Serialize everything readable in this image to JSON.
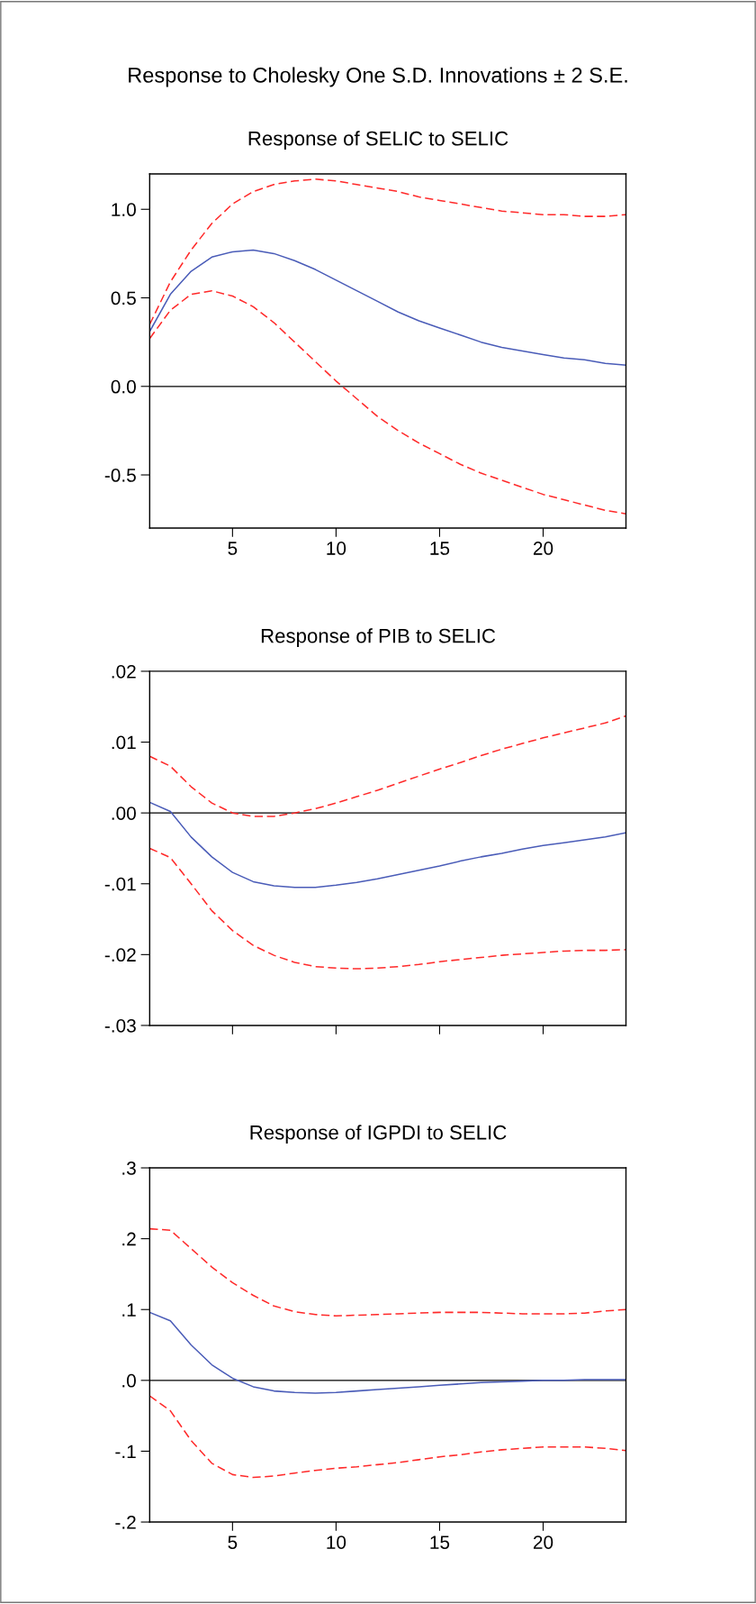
{
  "chart_data": [
    {
      "type": "line",
      "title": "Response to Cholesky One S.D. Innovations ± 2 S.E.",
      "subtitle": "Response of SELIC to SELIC",
      "x": [
        1,
        2,
        3,
        4,
        5,
        6,
        7,
        8,
        9,
        10,
        11,
        12,
        13,
        14,
        15,
        16,
        17,
        18,
        19,
        20,
        21,
        22,
        23,
        24
      ],
      "xlim": [
        1,
        24
      ],
      "xticks": [
        5,
        10,
        15,
        20
      ],
      "ylim": [
        -0.8,
        1.2
      ],
      "yticks": [
        {
          "value": -0.5,
          "label": "-0.5"
        },
        {
          "value": 0,
          "label": "0.0"
        },
        {
          "value": 0.5,
          "label": "0.5"
        },
        {
          "value": 1.0,
          "label": "1.0"
        }
      ],
      "grid": false,
      "legend": false,
      "ref_lines": [
        {
          "axis": "y",
          "value": 0,
          "color": "#000000",
          "line_style": "solid"
        }
      ],
      "series": [
        {
          "color": "#4a5cb8",
          "line_style": "solid",
          "values": [
            0.31,
            0.52,
            0.65,
            0.73,
            0.76,
            0.77,
            0.75,
            0.71,
            0.66,
            0.6,
            0.54,
            0.48,
            0.42,
            0.37,
            0.33,
            0.29,
            0.25,
            0.22,
            0.2,
            0.18,
            0.16,
            0.15,
            0.13,
            0.12
          ]
        },
        {
          "color": "#ff2a2a",
          "line_style": "dashed",
          "values": [
            0.35,
            0.59,
            0.77,
            0.92,
            1.03,
            1.1,
            1.14,
            1.16,
            1.17,
            1.16,
            1.14,
            1.12,
            1.1,
            1.07,
            1.05,
            1.03,
            1.01,
            0.99,
            0.98,
            0.97,
            0.97,
            0.96,
            0.96,
            0.97
          ]
        },
        {
          "color": "#ff2a2a",
          "line_style": "dashed",
          "values": [
            0.27,
            0.43,
            0.52,
            0.54,
            0.51,
            0.45,
            0.36,
            0.25,
            0.14,
            0.03,
            -0.07,
            -0.17,
            -0.25,
            -0.32,
            -0.38,
            -0.44,
            -0.49,
            -0.53,
            -0.57,
            -0.61,
            -0.64,
            -0.67,
            -0.7,
            -0.72
          ]
        }
      ]
    },
    {
      "type": "line",
      "title": "Response of PIB to SELIC",
      "x": [
        1,
        2,
        3,
        4,
        5,
        6,
        7,
        8,
        9,
        10,
        11,
        12,
        13,
        14,
        15,
        16,
        17,
        18,
        19,
        20,
        21,
        22,
        23,
        24
      ],
      "xlim": [
        1,
        24
      ],
      "xticks": [
        {
          "value": 5,
          "label": null
        },
        {
          "value": 10,
          "label": null
        },
        {
          "value": 15,
          "label": null
        },
        {
          "value": 20,
          "label": null
        }
      ],
      "ylim": [
        -0.03,
        0.02
      ],
      "yticks": [
        {
          "value": -0.03,
          "label": "-.03"
        },
        {
          "value": -0.02,
          "label": "-.02"
        },
        {
          "value": -0.01,
          "label": "-.01"
        },
        {
          "value": 0,
          "label": ".00"
        },
        {
          "value": 0.01,
          "label": ".01"
        },
        {
          "value": 0.02,
          "label": ".02"
        }
      ],
      "tick_labels": "y",
      "grid": false,
      "legend": false,
      "ref_lines": [
        {
          "axis": "y",
          "value": 0,
          "color": "#000000",
          "line_style": "solid"
        }
      ],
      "series": [
        {
          "color": "#4a5cb8",
          "line_style": "solid",
          "values": [
            0.0015,
            0.0002,
            -0.0034,
            -0.0062,
            -0.0084,
            -0.0097,
            -0.0103,
            -0.0105,
            -0.0105,
            -0.0102,
            -0.0098,
            -0.0093,
            -0.0087,
            -0.0081,
            -0.0075,
            -0.0068,
            -0.0062,
            -0.0057,
            -0.0051,
            -0.0046,
            -0.0042,
            -0.0038,
            -0.0034,
            -0.0028
          ]
        },
        {
          "color": "#ff2a2a",
          "line_style": "dashed",
          "values": [
            0.008,
            0.0066,
            0.0037,
            0.0014,
            0.0,
            -0.0005,
            -0.0005,
            0.0,
            0.0006,
            0.0014,
            0.0023,
            0.0032,
            0.0042,
            0.0052,
            0.0062,
            0.0071,
            0.0081,
            0.009,
            0.0098,
            0.0106,
            0.0113,
            0.012,
            0.0127,
            0.0137
          ]
        },
        {
          "color": "#ff2a2a",
          "line_style": "dashed",
          "values": [
            -0.005,
            -0.0063,
            -0.01,
            -0.0138,
            -0.0166,
            -0.0187,
            -0.0201,
            -0.0211,
            -0.0217,
            -0.0219,
            -0.022,
            -0.0219,
            -0.0217,
            -0.0214,
            -0.021,
            -0.0207,
            -0.0204,
            -0.0201,
            -0.0199,
            -0.0197,
            -0.0195,
            -0.0194,
            -0.0194,
            -0.0193
          ]
        }
      ]
    },
    {
      "type": "line",
      "title": "Response of IGPDI to SELIC",
      "x": [
        1,
        2,
        3,
        4,
        5,
        6,
        7,
        8,
        9,
        10,
        11,
        12,
        13,
        14,
        15,
        16,
        17,
        18,
        19,
        20,
        21,
        22,
        23,
        24
      ],
      "xlim": [
        1,
        24
      ],
      "xticks": [
        5,
        10,
        15,
        20
      ],
      "ylim": [
        -0.2,
        0.3
      ],
      "yticks": [
        {
          "value": -0.2,
          "label": "-.2"
        },
        {
          "value": -0.1,
          "label": "-.1"
        },
        {
          "value": 0,
          "label": ".0"
        },
        {
          "value": 0.1,
          "label": ".1"
        },
        {
          "value": 0.2,
          "label": ".2"
        },
        {
          "value": 0.3,
          "label": ".3"
        }
      ],
      "grid": false,
      "legend": false,
      "ref_lines": [
        {
          "axis": "y",
          "value": 0,
          "color": "#000000",
          "line_style": "solid"
        }
      ],
      "series": [
        {
          "color": "#4a5cb8",
          "line_style": "solid",
          "values": [
            0.096,
            0.084,
            0.05,
            0.022,
            0.003,
            -0.009,
            -0.015,
            -0.017,
            -0.018,
            -0.017,
            -0.015,
            -0.013,
            -0.011,
            -0.009,
            -0.007,
            -0.005,
            -0.003,
            -0.002,
            -0.001,
            0.0,
            0.0,
            0.001,
            0.001,
            0.001
          ]
        },
        {
          "color": "#ff2a2a",
          "line_style": "dashed",
          "values": [
            0.214,
            0.212,
            0.186,
            0.16,
            0.138,
            0.12,
            0.105,
            0.097,
            0.093,
            0.091,
            0.092,
            0.093,
            0.094,
            0.095,
            0.096,
            0.096,
            0.096,
            0.095,
            0.094,
            0.094,
            0.094,
            0.095,
            0.098,
            0.1
          ]
        },
        {
          "color": "#ff2a2a",
          "line_style": "dashed",
          "values": [
            -0.022,
            -0.043,
            -0.085,
            -0.117,
            -0.133,
            -0.137,
            -0.135,
            -0.131,
            -0.127,
            -0.124,
            -0.122,
            -0.119,
            -0.116,
            -0.112,
            -0.108,
            -0.105,
            -0.101,
            -0.098,
            -0.096,
            -0.094,
            -0.094,
            -0.094,
            -0.096,
            -0.099
          ]
        }
      ]
    }
  ]
}
